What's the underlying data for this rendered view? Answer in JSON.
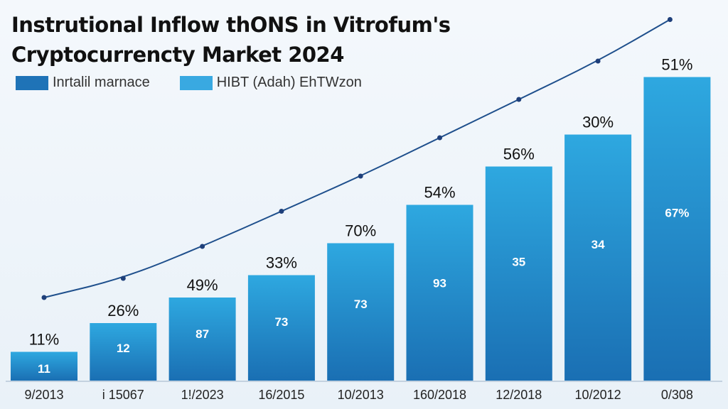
{
  "colors": {
    "bar_top": "#2ea8e0",
    "bar_bottom": "#1a6fb3",
    "line": "#1e4f8c",
    "legend_1": "#1f73b7",
    "legend_2": "#39a9e1"
  },
  "chart_data": {
    "type": "bar",
    "title_line1": "Instrutional Inflow thONS in Vitrofum's",
    "title_line2": "Cryptocurrencty Market 2024",
    "legend": [
      "Inrtalil marnace",
      "HIBT (Adah) EhTWzon"
    ],
    "categories": [
      "9/2013",
      "i 15067",
      "1!/2023",
      "16/2015",
      "10/2013",
      "160/2018",
      "12/2018",
      "10/2012",
      "0/308"
    ],
    "values": [
      11,
      12,
      87,
      73,
      73,
      93,
      35,
      34,
      67
    ],
    "top_labels": [
      "11%",
      "26%",
      "49%",
      "33%",
      "70%",
      "54%",
      "56%",
      "30%",
      "51%"
    ],
    "inner_labels": [
      "11",
      "12",
      "87",
      "73",
      "73",
      "93",
      "35",
      "34",
      "67%"
    ],
    "bar_heights_pct": [
      9,
      18,
      26,
      33,
      43,
      55,
      67,
      77,
      95
    ],
    "line_points": [
      26,
      32,
      42,
      53,
      64,
      76,
      88,
      100,
      113
    ],
    "ylim": [
      0,
      100
    ],
    "grid": false
  }
}
